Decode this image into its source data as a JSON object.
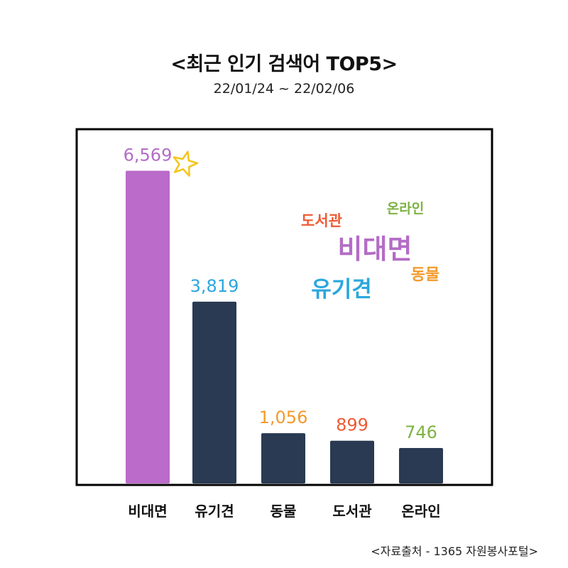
{
  "chart_data": {
    "type": "bar",
    "title": "<최근 인기 검색어 TOP5>",
    "subtitle": "22/01/24 ~ 22/02/06",
    "categories": [
      "비대면",
      "유기견",
      "동물",
      "도서관",
      "온라인"
    ],
    "values": [
      6569,
      3819,
      1056,
      899,
      746
    ],
    "value_labels": [
      "6,569",
      "3,819",
      "1,056",
      "899",
      "746"
    ],
    "label_colors": [
      "#b46cc6",
      "#2aa7de",
      "#f39a2c",
      "#ef5a34",
      "#7db243"
    ],
    "bar_colors": [
      "#bb6bc9",
      "#293a52",
      "#293a52",
      "#293a52",
      "#293a52"
    ],
    "ylim": [
      0,
      7500
    ],
    "grid": false,
    "xlabel": "",
    "ylabel": ""
  },
  "word_cloud": [
    {
      "text": "온라인",
      "color": "#7db243"
    },
    {
      "text": "도서관",
      "color": "#ef5a34"
    },
    {
      "text": "비대면",
      "color": "#b46cc6"
    },
    {
      "text": "동물",
      "color": "#f39a2c"
    },
    {
      "text": "유기견",
      "color": "#2aa7de"
    }
  ],
  "highlight": {
    "icon": "star-icon",
    "color": "#f5c518"
  },
  "source": "<자료출처 - 1365 자원봉사포털>"
}
